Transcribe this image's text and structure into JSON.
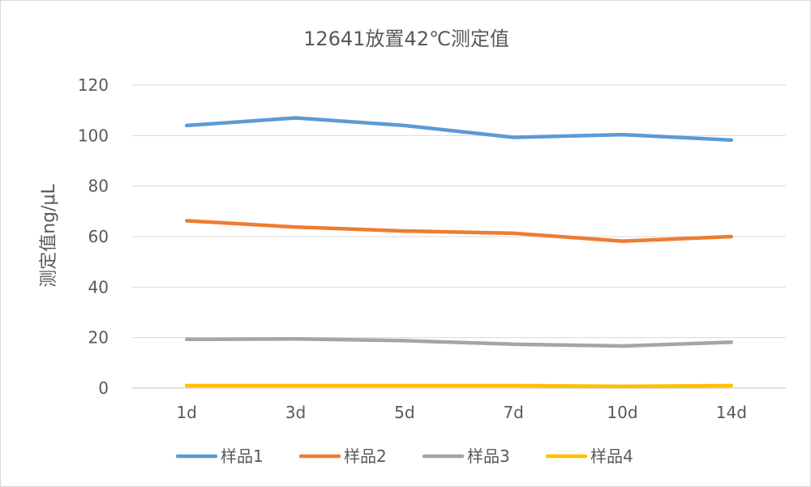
{
  "chart_data": {
    "type": "line",
    "title": "12641放置42℃测定值",
    "xlabel": "",
    "ylabel": "测定值ng/μL",
    "categories": [
      "1d",
      "3d",
      "5d",
      "7d",
      "10d",
      "14d"
    ],
    "ylim": [
      0,
      120
    ],
    "yticks": [
      0,
      20,
      40,
      60,
      80,
      100,
      120
    ],
    "grid": true,
    "legend_position": "bottom",
    "series": [
      {
        "name": "样品1",
        "color": "#5b9bd5",
        "values": [
          104,
          107,
          104,
          99.3,
          100.4,
          98.2
        ]
      },
      {
        "name": "样品2",
        "color": "#ed7d31",
        "values": [
          66.3,
          63.8,
          62.2,
          61.3,
          58.2,
          60
        ]
      },
      {
        "name": "样品3",
        "color": "#a5a5a5",
        "values": [
          19.3,
          19.5,
          18.8,
          17.4,
          16.7,
          18.2
        ]
      },
      {
        "name": "样品4",
        "color": "#ffc000",
        "values": [
          1,
          1,
          1,
          1,
          0.7,
          1
        ]
      }
    ]
  }
}
